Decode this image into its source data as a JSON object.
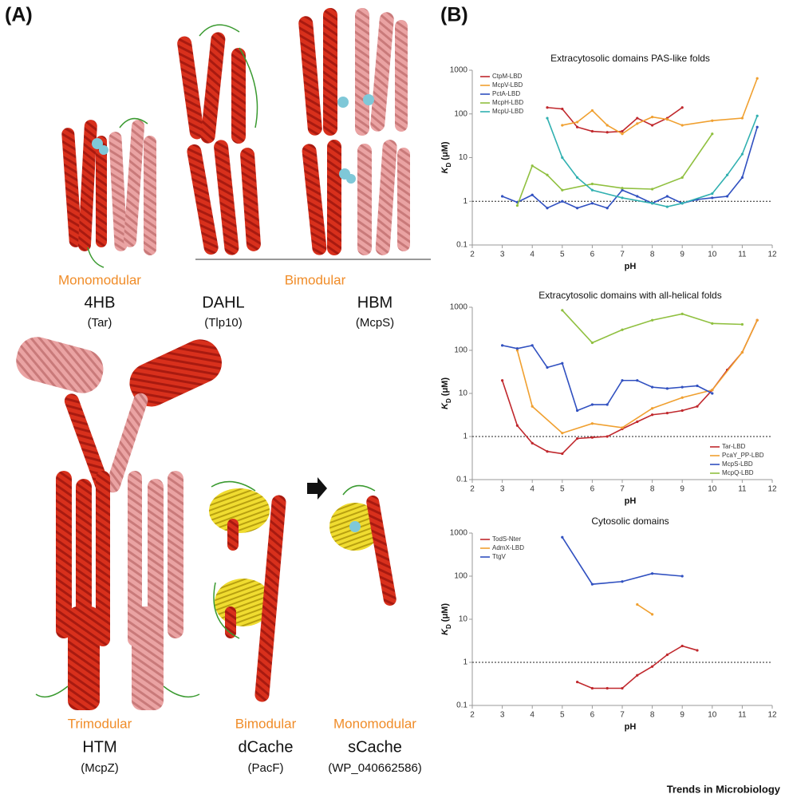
{
  "panel_a": {
    "label": "(A)",
    "structures": [
      {
        "module": "Monomodular",
        "domain": "4HB",
        "protein": "(Tar)"
      },
      {
        "module": "Bimodular",
        "domain": "DAHL",
        "protein": "(Tlp10)"
      },
      {
        "domain": "HBM",
        "protein": "(McpS)"
      },
      {
        "module": "Trimodular",
        "domain": "HTM",
        "protein": "(McpZ)"
      },
      {
        "module": "Bimodular",
        "domain": "dCache",
        "protein": "(PacF)"
      },
      {
        "module": "Monomodular",
        "domain": "sCache",
        "protein": "(WP_040662586)"
      }
    ]
  },
  "panel_b": {
    "label": "(B)"
  },
  "footer": "Trends in Microbiology",
  "chart_data": [
    {
      "type": "line",
      "title": "Extracytosolic domains PAS-like folds",
      "xlabel": "pH",
      "ylabel": [
        "K",
        "D",
        " (μM)"
      ],
      "yscale": "log",
      "legend": "upper left",
      "xlim": [
        2,
        12
      ],
      "xticks": [
        2,
        3,
        4,
        5,
        6,
        7,
        8,
        9,
        10,
        11,
        12
      ],
      "ylim": [
        0.1,
        1000
      ],
      "yticks": [
        0.1,
        1,
        10,
        100,
        1000
      ],
      "reference_line": 1,
      "series": [
        {
          "name": "CtpM-LBD",
          "color": "#c0282d",
          "x": [
            4.5,
            5,
            5.5,
            6,
            6.5,
            7,
            7.5,
            8,
            8.5,
            9
          ],
          "values": [
            140,
            130,
            50,
            40,
            38,
            40,
            80,
            55,
            80,
            140
          ]
        },
        {
          "name": "McpV-LBD",
          "color": "#f0a030",
          "x": [
            5,
            5.5,
            6,
            6.5,
            7,
            7.5,
            8,
            8.5,
            9,
            10,
            11,
            11.5
          ],
          "values": [
            55,
            65,
            120,
            55,
            35,
            60,
            85,
            75,
            55,
            70,
            80,
            650
          ]
        },
        {
          "name": "PctA-LBD",
          "color": "#3050c0",
          "x": [
            3,
            3.5,
            4,
            4.5,
            5,
            5.5,
            6,
            6.5,
            7,
            7.5,
            8,
            8.5,
            9,
            9.5,
            10,
            10.5,
            11,
            11.5
          ],
          "values": [
            1.3,
            0.95,
            1.4,
            0.7,
            1.0,
            0.7,
            0.9,
            0.7,
            1.8,
            1.3,
            0.9,
            1.3,
            0.9,
            1.1,
            1.2,
            1.3,
            3.5,
            50
          ]
        },
        {
          "name": "McpH-LBD",
          "color": "#90c040",
          "x": [
            3.5,
            4,
            4.5,
            5,
            6,
            7,
            8,
            9,
            10
          ],
          "values": [
            0.8,
            6.5,
            4,
            1.8,
            2.5,
            2,
            1.9,
            3.5,
            35
          ]
        },
        {
          "name": "McpU-LBD",
          "color": "#30b0b0",
          "x": [
            4.5,
            5,
            5.5,
            6,
            7,
            8,
            8.5,
            9,
            10,
            10.5,
            11,
            11.5
          ],
          "values": [
            80,
            10,
            3.5,
            1.8,
            1.2,
            0.9,
            0.75,
            0.9,
            1.5,
            4,
            12,
            90
          ]
        }
      ]
    },
    {
      "type": "line",
      "title": "Extracytosolic domains with all-helical folds",
      "xlabel": "pH",
      "ylabel": [
        "K",
        "D",
        " (μM)"
      ],
      "yscale": "log",
      "legend": "lower right",
      "xlim": [
        2,
        12
      ],
      "xticks": [
        2,
        3,
        4,
        5,
        6,
        7,
        8,
        9,
        10,
        11,
        12
      ],
      "ylim": [
        0.1,
        1000
      ],
      "yticks": [
        0.1,
        1,
        10,
        100,
        1000
      ],
      "reference_line": 1,
      "series": [
        {
          "name": "Tar-LBD",
          "color": "#c0282d",
          "x": [
            3,
            3.5,
            4,
            4.5,
            5,
            5.5,
            6,
            6.5,
            7,
            7.5,
            8,
            8.5,
            9,
            9.5,
            10,
            10.5,
            11,
            11.5
          ],
          "values": [
            20,
            1.8,
            0.7,
            0.45,
            0.4,
            0.9,
            0.95,
            1.0,
            1.5,
            2.2,
            3.2,
            3.5,
            4,
            5,
            12,
            35,
            90,
            500
          ]
        },
        {
          "name": "PcaY_PP-LBD",
          "color": "#f0a030",
          "x": [
            3.5,
            4,
            5,
            6,
            7,
            8,
            9,
            10,
            11,
            11.5
          ],
          "values": [
            100,
            5,
            1.2,
            2,
            1.6,
            4.5,
            8,
            12,
            90,
            500
          ]
        },
        {
          "name": "McpS-LBD",
          "color": "#3050c0",
          "x": [
            3,
            3.5,
            4,
            4.5,
            5,
            5.5,
            6,
            6.5,
            7,
            7.5,
            8,
            8.5,
            9,
            9.5,
            10
          ],
          "values": [
            130,
            110,
            130,
            40,
            50,
            4,
            5.5,
            5.5,
            20,
            20,
            14,
            13,
            14,
            15,
            10
          ]
        },
        {
          "name": "McpQ-LBD",
          "color": "#90c040",
          "x": [
            5,
            6,
            7,
            8,
            9,
            10,
            11
          ],
          "values": [
            850,
            150,
            300,
            500,
            700,
            420,
            400
          ]
        }
      ]
    },
    {
      "type": "line",
      "title": "Cytosolic domains",
      "xlabel": "pH",
      "ylabel": [
        "K",
        "D",
        " (μM)"
      ],
      "yscale": "log",
      "legend": "upper left",
      "xlim": [
        2,
        12
      ],
      "xticks": [
        2,
        3,
        4,
        5,
        6,
        7,
        8,
        9,
        10,
        11,
        12
      ],
      "ylim": [
        0.1,
        1000
      ],
      "yticks": [
        0.1,
        1,
        10,
        100,
        1000
      ],
      "reference_line": 1,
      "series": [
        {
          "name": "TodS-Nter",
          "color": "#c0282d",
          "x": [
            5.5,
            6,
            6.5,
            7,
            7.5,
            8,
            8.5,
            9,
            9.5
          ],
          "values": [
            0.35,
            0.25,
            0.25,
            0.25,
            0.5,
            0.8,
            1.5,
            2.4,
            1.9
          ]
        },
        {
          "name": "AdmX-LBD",
          "color": "#f0a030",
          "x": [
            7.5,
            8
          ],
          "values": [
            22,
            13
          ]
        },
        {
          "name": "TtgV",
          "color": "#3050c0",
          "x": [
            5,
            6,
            7,
            8,
            9
          ],
          "values": [
            800,
            65,
            75,
            115,
            100
          ]
        }
      ]
    }
  ]
}
